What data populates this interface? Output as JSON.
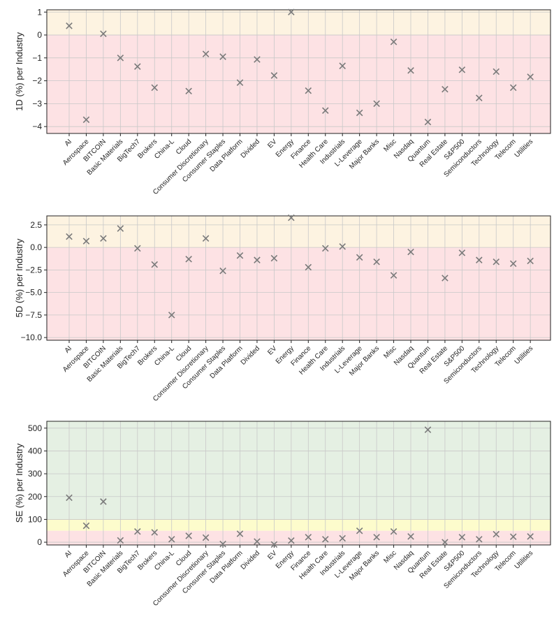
{
  "categories": [
    "AI",
    "Aerospace",
    "BITCOIN",
    "Basic Materials",
    "BigTech7",
    "Brokers",
    "China-L",
    "Cloud",
    "Consumer Discretionary",
    "Consumer Staples",
    "Data Platform",
    "Divided",
    "EV",
    "Energy",
    "Finance",
    "Health Care",
    "Industrials",
    "L-Leverage",
    "Major Banks",
    "Misc",
    "Nasdaq",
    "Quantum",
    "Real Estate",
    "S&P500",
    "Semiconductors",
    "Technology",
    "Telecom",
    "Utilities"
  ],
  "colors": {
    "marker": "#7a7a7a",
    "positive_band": "#fdf3e1",
    "negative_band": "#fde2e4",
    "high_band": "#e5f0e3",
    "mid_band": "#fdfccc",
    "grid": "#c8c8c8",
    "axis": "#222222"
  },
  "chart_data": [
    {
      "type": "scatter",
      "ylabel": "1D (%) per Industry",
      "ylim": [
        -4.3,
        1.1
      ],
      "yticks": [
        1,
        0,
        -1,
        -2,
        -3,
        -4
      ],
      "ytick_labels": [
        "1",
        "0",
        "−1",
        "−2",
        "−3",
        "−4"
      ],
      "grid": true,
      "bands": [
        {
          "from": 0,
          "to": 1.1,
          "color": "#fdf3e1"
        },
        {
          "from": -4.3,
          "to": 0,
          "color": "#fde2e4"
        }
      ],
      "values": [
        0.4,
        -3.7,
        0.05,
        -1.0,
        -1.38,
        -2.3,
        null,
        -2.45,
        -0.83,
        -0.95,
        -2.08,
        -1.07,
        -1.77,
        1.0,
        -2.43,
        -3.3,
        -1.35,
        -3.4,
        -3.0,
        -0.3,
        -1.55,
        -3.8,
        -2.37,
        -1.52,
        -2.75,
        -1.6,
        -2.3,
        -1.83
      ]
    },
    {
      "type": "scatter",
      "ylabel": "5D (%) per Industry",
      "ylim": [
        -10.3,
        3.5
      ],
      "yticks": [
        2.5,
        0.0,
        -2.5,
        -5.0,
        -7.5,
        -10.0
      ],
      "ytick_labels": [
        "2.5",
        "0.0",
        "−2.5",
        "−5.0",
        "−7.5",
        "−10.0"
      ],
      "grid": true,
      "bands": [
        {
          "from": 0,
          "to": 3.5,
          "color": "#fdf3e1"
        },
        {
          "from": -10.3,
          "to": 0,
          "color": "#fde2e4"
        }
      ],
      "values": [
        1.2,
        0.7,
        1.0,
        2.1,
        -0.1,
        -1.9,
        -7.5,
        -1.3,
        1.0,
        -2.6,
        -0.9,
        -1.4,
        -1.2,
        3.3,
        -2.2,
        -0.1,
        0.1,
        -1.1,
        -1.6,
        -3.1,
        -0.5,
        null,
        -3.4,
        -0.6,
        -1.4,
        -1.6,
        -1.8,
        -1.5
      ]
    },
    {
      "type": "scatter",
      "ylabel": "SE (%) per Industry",
      "ylim": [
        -12,
        530
      ],
      "yticks": [
        500,
        400,
        300,
        200,
        100,
        0
      ],
      "ytick_labels": [
        "500",
        "400",
        "300",
        "200",
        "100",
        "0"
      ],
      "grid": true,
      "bands": [
        {
          "from": 100,
          "to": 530,
          "color": "#e5f0e3"
        },
        {
          "from": 50,
          "to": 100,
          "color": "#fdfccc"
        },
        {
          "from": -12,
          "to": 50,
          "color": "#fde2e4"
        }
      ],
      "values": [
        195,
        72,
        178,
        8,
        47,
        43,
        13,
        28,
        20,
        -8,
        37,
        3,
        -10,
        7,
        22,
        13,
        17,
        50,
        22,
        47,
        25,
        493,
        0,
        22,
        13,
        35,
        24,
        25
      ]
    }
  ]
}
